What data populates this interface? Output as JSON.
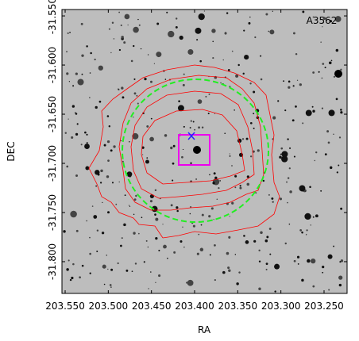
{
  "chart_data": {
    "type": "image",
    "title": "A3562",
    "xlabel": "RA",
    "ylabel": "DEC",
    "xlim": [
      203.5537,
      203.2233
    ],
    "ylim": [
      -31.8323,
      -31.5435
    ],
    "xticks": [
      {
        "value": 203.55,
        "label": "203.550"
      },
      {
        "value": 203.5,
        "label": "203.500"
      },
      {
        "value": 203.45,
        "label": "203.450"
      },
      {
        "value": 203.4,
        "label": "203.400"
      },
      {
        "value": 203.35,
        "label": "203.350"
      },
      {
        "value": 203.3,
        "label": "203.300"
      },
      {
        "value": 203.25,
        "label": "203.250"
      }
    ],
    "yticks": [
      {
        "value": -31.55,
        "label": "-31.550"
      },
      {
        "value": -31.6,
        "label": "-31.600"
      },
      {
        "value": -31.65,
        "label": "-31.650"
      },
      {
        "value": -31.7,
        "label": "-31.700"
      },
      {
        "value": -31.75,
        "label": "-31.750"
      },
      {
        "value": -31.8,
        "label": "-31.800"
      }
    ]
  }
}
